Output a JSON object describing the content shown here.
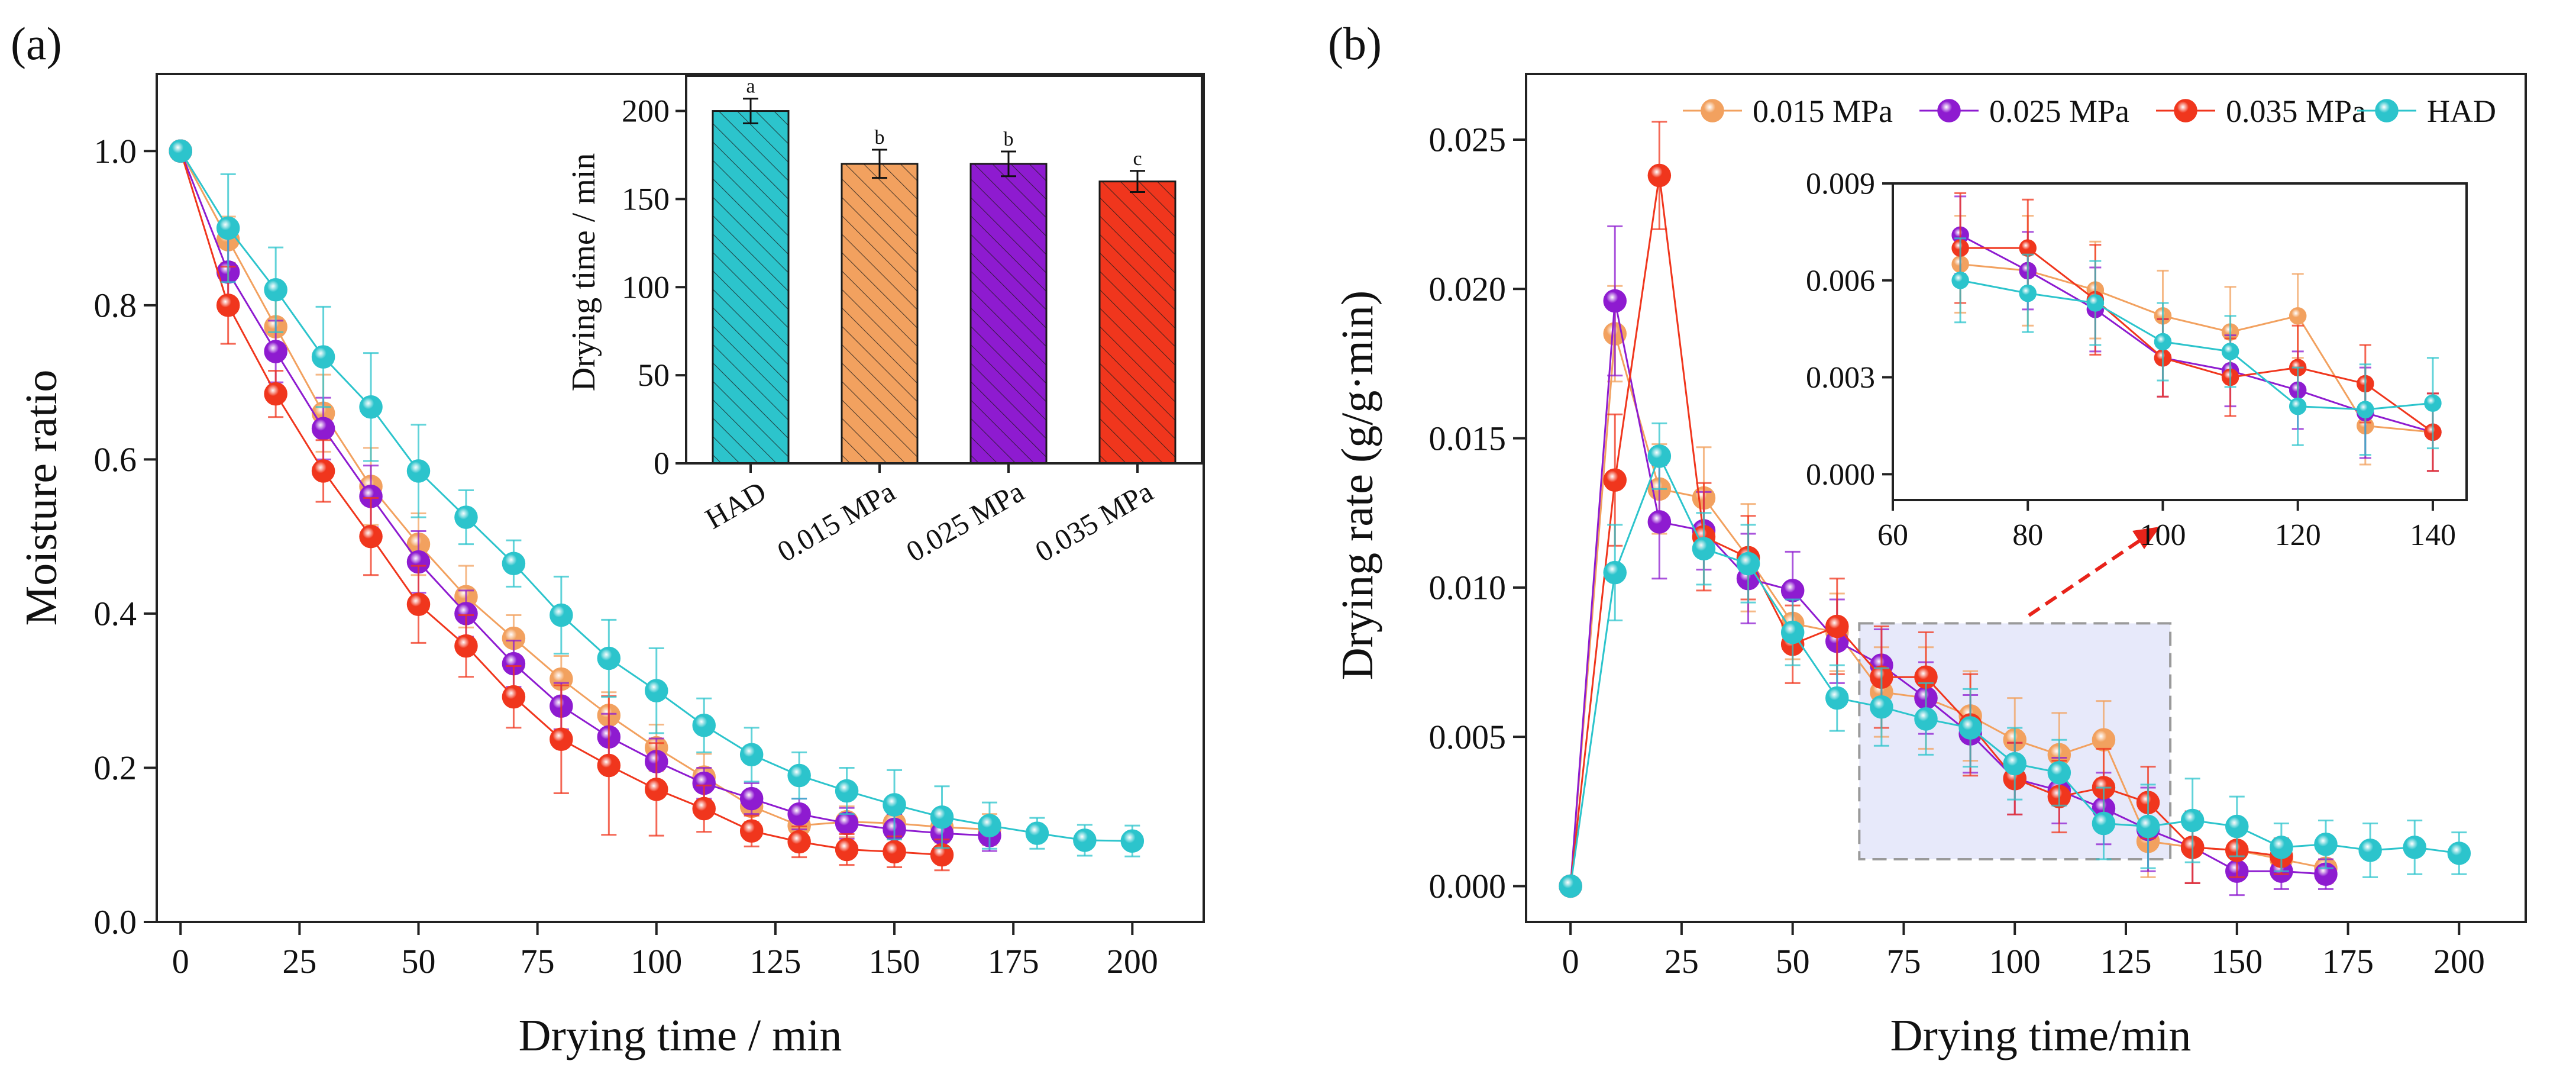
{
  "colors": {
    "c015": "#F2A15F",
    "c025": "#8E1BD0",
    "c035": "#F0361D",
    "had": "#2CC4CC",
    "zoom_box_fill": "#D9DCF7",
    "zoom_box_stroke": "#9A9A9A",
    "arrow": "#E8231A"
  },
  "chart_data": [
    {
      "id": "a_main",
      "type": "line",
      "panel_label": "(a)",
      "xlabel": "Drying time / min",
      "ylabel": "Moisture ratio",
      "xlim": [
        -5,
        215
      ],
      "ylim": [
        0,
        1.1
      ],
      "xticks": [
        0,
        25,
        50,
        75,
        100,
        125,
        150,
        175,
        200
      ],
      "yticks": [
        0.0,
        0.2,
        0.4,
        0.6,
        0.8,
        1.0
      ],
      "ytick_labels": [
        "0.0",
        "0.2",
        "0.4",
        "0.6",
        "0.8",
        "1.0"
      ],
      "series": [
        {
          "key": "c015",
          "name": "0.015 MPa",
          "x": [
            0,
            10,
            20,
            30,
            40,
            50,
            60,
            70,
            80,
            90,
            100,
            110,
            120,
            130,
            140,
            150,
            160,
            170
          ],
          "y": [
            1.0,
            0.885,
            0.772,
            0.66,
            0.565,
            0.49,
            0.422,
            0.368,
            0.315,
            0.268,
            0.226,
            0.188,
            0.15,
            0.125,
            0.13,
            0.128,
            0.123,
            0.12
          ],
          "err": [
            0,
            0.03,
            0.04,
            0.05,
            0.05,
            0.04,
            0.04,
            0.03,
            0.03,
            0.03,
            0.03,
            0.03,
            0.02,
            0.02,
            0.02,
            0.02,
            0.02,
            0.02
          ]
        },
        {
          "key": "c025",
          "name": "0.025 MPa",
          "x": [
            0,
            10,
            20,
            30,
            40,
            50,
            60,
            70,
            80,
            90,
            100,
            110,
            120,
            130,
            140,
            150,
            160,
            170
          ],
          "y": [
            1.0,
            0.843,
            0.74,
            0.64,
            0.552,
            0.467,
            0.4,
            0.335,
            0.28,
            0.24,
            0.208,
            0.18,
            0.16,
            0.14,
            0.128,
            0.12,
            0.115,
            0.112
          ],
          "err": [
            0,
            0.05,
            0.04,
            0.04,
            0.04,
            0.04,
            0.03,
            0.03,
            0.03,
            0.03,
            0.03,
            0.02,
            0.02,
            0.02,
            0.02,
            0.02,
            0.02,
            0.02
          ]
        },
        {
          "key": "c035",
          "name": "0.035 MPa",
          "x": [
            0,
            10,
            20,
            30,
            40,
            50,
            60,
            70,
            80,
            90,
            100,
            110,
            120,
            130,
            140,
            150,
            160
          ],
          "y": [
            1.0,
            0.8,
            0.685,
            0.585,
            0.5,
            0.412,
            0.358,
            0.292,
            0.237,
            0.203,
            0.172,
            0.147,
            0.118,
            0.104,
            0.094,
            0.091,
            0.087
          ],
          "err": [
            0,
            0.05,
            0.03,
            0.04,
            0.05,
            0.05,
            0.04,
            0.04,
            0.07,
            0.09,
            0.06,
            0.03,
            0.02,
            0.02,
            0.02,
            0.02,
            0.02
          ]
        },
        {
          "key": "had",
          "name": "HAD",
          "x": [
            0,
            10,
            20,
            30,
            40,
            50,
            60,
            70,
            80,
            90,
            100,
            110,
            120,
            130,
            140,
            150,
            160,
            170,
            180,
            190,
            200
          ],
          "y": [
            1.0,
            0.9,
            0.82,
            0.733,
            0.668,
            0.585,
            0.525,
            0.465,
            0.398,
            0.342,
            0.3,
            0.255,
            0.217,
            0.19,
            0.17,
            0.152,
            0.136,
            0.125,
            0.115,
            0.106,
            0.105
          ],
          "err": [
            0,
            0.07,
            0.055,
            0.065,
            0.07,
            0.06,
            0.035,
            0.03,
            0.05,
            0.05,
            0.055,
            0.035,
            0.035,
            0.03,
            0.03,
            0.045,
            0.04,
            0.03,
            0.02,
            0.02,
            0.02
          ]
        }
      ]
    },
    {
      "id": "a_inset",
      "type": "bar",
      "ylabel": "Drying time / min",
      "ylim": [
        0,
        220
      ],
      "yticks": [
        0,
        50,
        100,
        150,
        200
      ],
      "categories": [
        "HAD",
        "0.015 MPa",
        "0.025 MPa",
        "0.035 MPa"
      ],
      "keys": [
        "had",
        "c015",
        "c025",
        "c035"
      ],
      "values": [
        200,
        170,
        170,
        160
      ],
      "errors": [
        7,
        8,
        7,
        6
      ],
      "significance": [
        "a",
        "b",
        "b",
        "c"
      ]
    },
    {
      "id": "b_main",
      "type": "line",
      "panel_label": "(b)",
      "xlabel": "Drying time/min",
      "ylabel": "Drying rate (g/g·min)",
      "xlim": [
        -10,
        215
      ],
      "ylim": [
        -0.0012,
        0.0272
      ],
      "xticks": [
        0,
        25,
        50,
        75,
        100,
        125,
        150,
        175,
        200
      ],
      "yticks": [
        0,
        0.005,
        0.01,
        0.015,
        0.02,
        0.025
      ],
      "ytick_labels": [
        "0.000",
        "0.005",
        "0.010",
        "0.015",
        "0.020",
        "0.025"
      ],
      "legend": [
        "0.015 MPa",
        "0.025 MPa",
        "0.035 MPa",
        "HAD"
      ],
      "zoom_region": {
        "x": [
          65,
          135
        ],
        "y": [
          0.0009,
          0.0088
        ]
      },
      "series": [
        {
          "key": "c015",
          "name": "0.015 MPa",
          "x": [
            0,
            10,
            20,
            30,
            40,
            50,
            60,
            70,
            80,
            90,
            100,
            110,
            120,
            130,
            140,
            150,
            160,
            170
          ],
          "y": [
            0,
            0.0185,
            0.0133,
            0.013,
            0.011,
            0.0088,
            0.0085,
            0.0065,
            0.0063,
            0.0057,
            0.0049,
            0.0044,
            0.0049,
            0.0015,
            0.0013,
            0.0012,
            0.0009,
            0.0006
          ],
          "err": [
            0,
            0.0016,
            0.0015,
            0.0017,
            0.0018,
            0.0012,
            0.0013,
            0.0015,
            0.0017,
            0.0015,
            0.0014,
            0.0014,
            0.0013,
            0.0012,
            0.0012,
            0.0008,
            0.0006,
            0.0005
          ]
        },
        {
          "key": "c025",
          "name": "0.025 MPa",
          "x": [
            0,
            10,
            20,
            30,
            40,
            50,
            60,
            70,
            80,
            90,
            100,
            110,
            120,
            130,
            140,
            150,
            160,
            170
          ],
          "y": [
            0,
            0.0196,
            0.0122,
            0.0119,
            0.0103,
            0.0099,
            0.0082,
            0.0074,
            0.0063,
            0.0051,
            0.0036,
            0.0032,
            0.0026,
            0.0019,
            0.0013,
            0.0005,
            0.0005,
            0.0004
          ],
          "err": [
            0,
            0.0025,
            0.0019,
            0.0013,
            0.0015,
            0.0013,
            0.0014,
            0.0012,
            0.0012,
            0.0013,
            0.0012,
            0.0011,
            0.0012,
            0.0014,
            0.0012,
            0.0008,
            0.0006,
            0.0005
          ]
        },
        {
          "key": "c035",
          "name": "0.035 MPa",
          "x": [
            0,
            10,
            20,
            30,
            40,
            50,
            60,
            70,
            80,
            90,
            100,
            110,
            120,
            130,
            140,
            150,
            160
          ],
          "y": [
            0,
            0.0136,
            0.0238,
            0.0117,
            0.011,
            0.0081,
            0.0087,
            0.007,
            0.007,
            0.0054,
            0.0036,
            0.003,
            0.0033,
            0.0028,
            0.0013,
            0.0012,
            0.001
          ],
          "err": [
            0,
            0.0022,
            0.0018,
            0.0018,
            0.0014,
            0.0013,
            0.0016,
            0.0017,
            0.0015,
            0.0017,
            0.0012,
            0.0012,
            0.0013,
            0.0012,
            0.0012,
            0.0009,
            0.0006
          ]
        },
        {
          "key": "had",
          "name": "HAD",
          "x": [
            0,
            10,
            20,
            30,
            40,
            50,
            60,
            70,
            80,
            90,
            100,
            110,
            120,
            130,
            140,
            150,
            160,
            170,
            180,
            190,
            200
          ],
          "y": [
            0,
            0.0105,
            0.0144,
            0.0113,
            0.0108,
            0.0085,
            0.0063,
            0.006,
            0.0056,
            0.0053,
            0.0041,
            0.0038,
            0.0021,
            0.002,
            0.0022,
            0.002,
            0.0013,
            0.0014,
            0.0012,
            0.0013,
            0.0011
          ],
          "err": [
            0,
            0.0016,
            0.0011,
            0.0012,
            0.0013,
            0.0011,
            0.0011,
            0.0013,
            0.0012,
            0.0013,
            0.0012,
            0.0011,
            0.0012,
            0.0014,
            0.0014,
            0.001,
            0.0008,
            0.0008,
            0.0009,
            0.0009,
            0.0007
          ]
        }
      ]
    },
    {
      "id": "b_inset",
      "type": "line",
      "xlim": [
        60,
        145
      ],
      "ylim": [
        -0.0008,
        0.009
      ],
      "xticks": [
        60,
        80,
        100,
        120,
        140
      ],
      "yticks": [
        0,
        0.003,
        0.006,
        0.009
      ],
      "ytick_labels": [
        "0.000",
        "0.003",
        "0.006",
        "0.009"
      ],
      "series": [
        {
          "key": "c015",
          "x": [
            70,
            80,
            90,
            100,
            110,
            120,
            130,
            140
          ],
          "y": [
            0.0065,
            0.0063,
            0.0057,
            0.0049,
            0.0044,
            0.0049,
            0.0015,
            0.0013
          ],
          "err": [
            0.0015,
            0.0017,
            0.0015,
            0.0014,
            0.0014,
            0.0013,
            0.0012,
            0.0012
          ]
        },
        {
          "key": "c025",
          "x": [
            70,
            80,
            90,
            100,
            110,
            120,
            130,
            140
          ],
          "y": [
            0.0074,
            0.0063,
            0.0051,
            0.0036,
            0.0032,
            0.0026,
            0.0019,
            0.0013
          ],
          "err": [
            0.0012,
            0.0012,
            0.0013,
            0.0012,
            0.0011,
            0.0012,
            0.0014,
            0.0012
          ]
        },
        {
          "key": "c035",
          "x": [
            70,
            80,
            90,
            100,
            110,
            120,
            130,
            140
          ],
          "y": [
            0.007,
            0.007,
            0.0054,
            0.0036,
            0.003,
            0.0033,
            0.0028,
            0.0013
          ],
          "err": [
            0.0017,
            0.0015,
            0.0017,
            0.0012,
            0.0012,
            0.0013,
            0.0012,
            0.0012
          ]
        },
        {
          "key": "had",
          "x": [
            70,
            80,
            90,
            100,
            110,
            120,
            130,
            140
          ],
          "y": [
            0.006,
            0.0056,
            0.0053,
            0.0041,
            0.0038,
            0.0021,
            0.002,
            0.0022
          ],
          "err": [
            0.0013,
            0.0012,
            0.0013,
            0.0012,
            0.0011,
            0.0012,
            0.0014,
            0.0014
          ]
        }
      ]
    }
  ]
}
